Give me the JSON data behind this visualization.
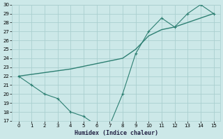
{
  "x": [
    0,
    1,
    2,
    3,
    4,
    5,
    6,
    7,
    8,
    9,
    10,
    11,
    12,
    13,
    14,
    15
  ],
  "y_jagged": [
    22,
    21,
    20,
    19.5,
    18,
    17.5,
    16.5,
    16.5,
    20,
    24.5,
    27,
    28.5,
    27.5,
    29,
    30,
    29
  ],
  "y_trend": [
    22,
    22.2,
    22.4,
    22.6,
    22.8,
    23.1,
    23.4,
    23.7,
    24.0,
    25.0,
    26.5,
    27.2,
    27.5,
    28.0,
    28.5,
    29.0
  ],
  "line_color": "#2d7f72",
  "bg_color": "#cce8e8",
  "grid_color": "#aacfcf",
  "xlabel": "Humidex (Indice chaleur)",
  "xlim": [
    -0.5,
    15.5
  ],
  "ylim": [
    17,
    30
  ],
  "yticks": [
    17,
    18,
    19,
    20,
    21,
    22,
    23,
    24,
    25,
    26,
    27,
    28,
    29,
    30
  ],
  "xticks": [
    0,
    1,
    2,
    3,
    4,
    5,
    6,
    7,
    8,
    9,
    10,
    11,
    12,
    13,
    14,
    15
  ]
}
